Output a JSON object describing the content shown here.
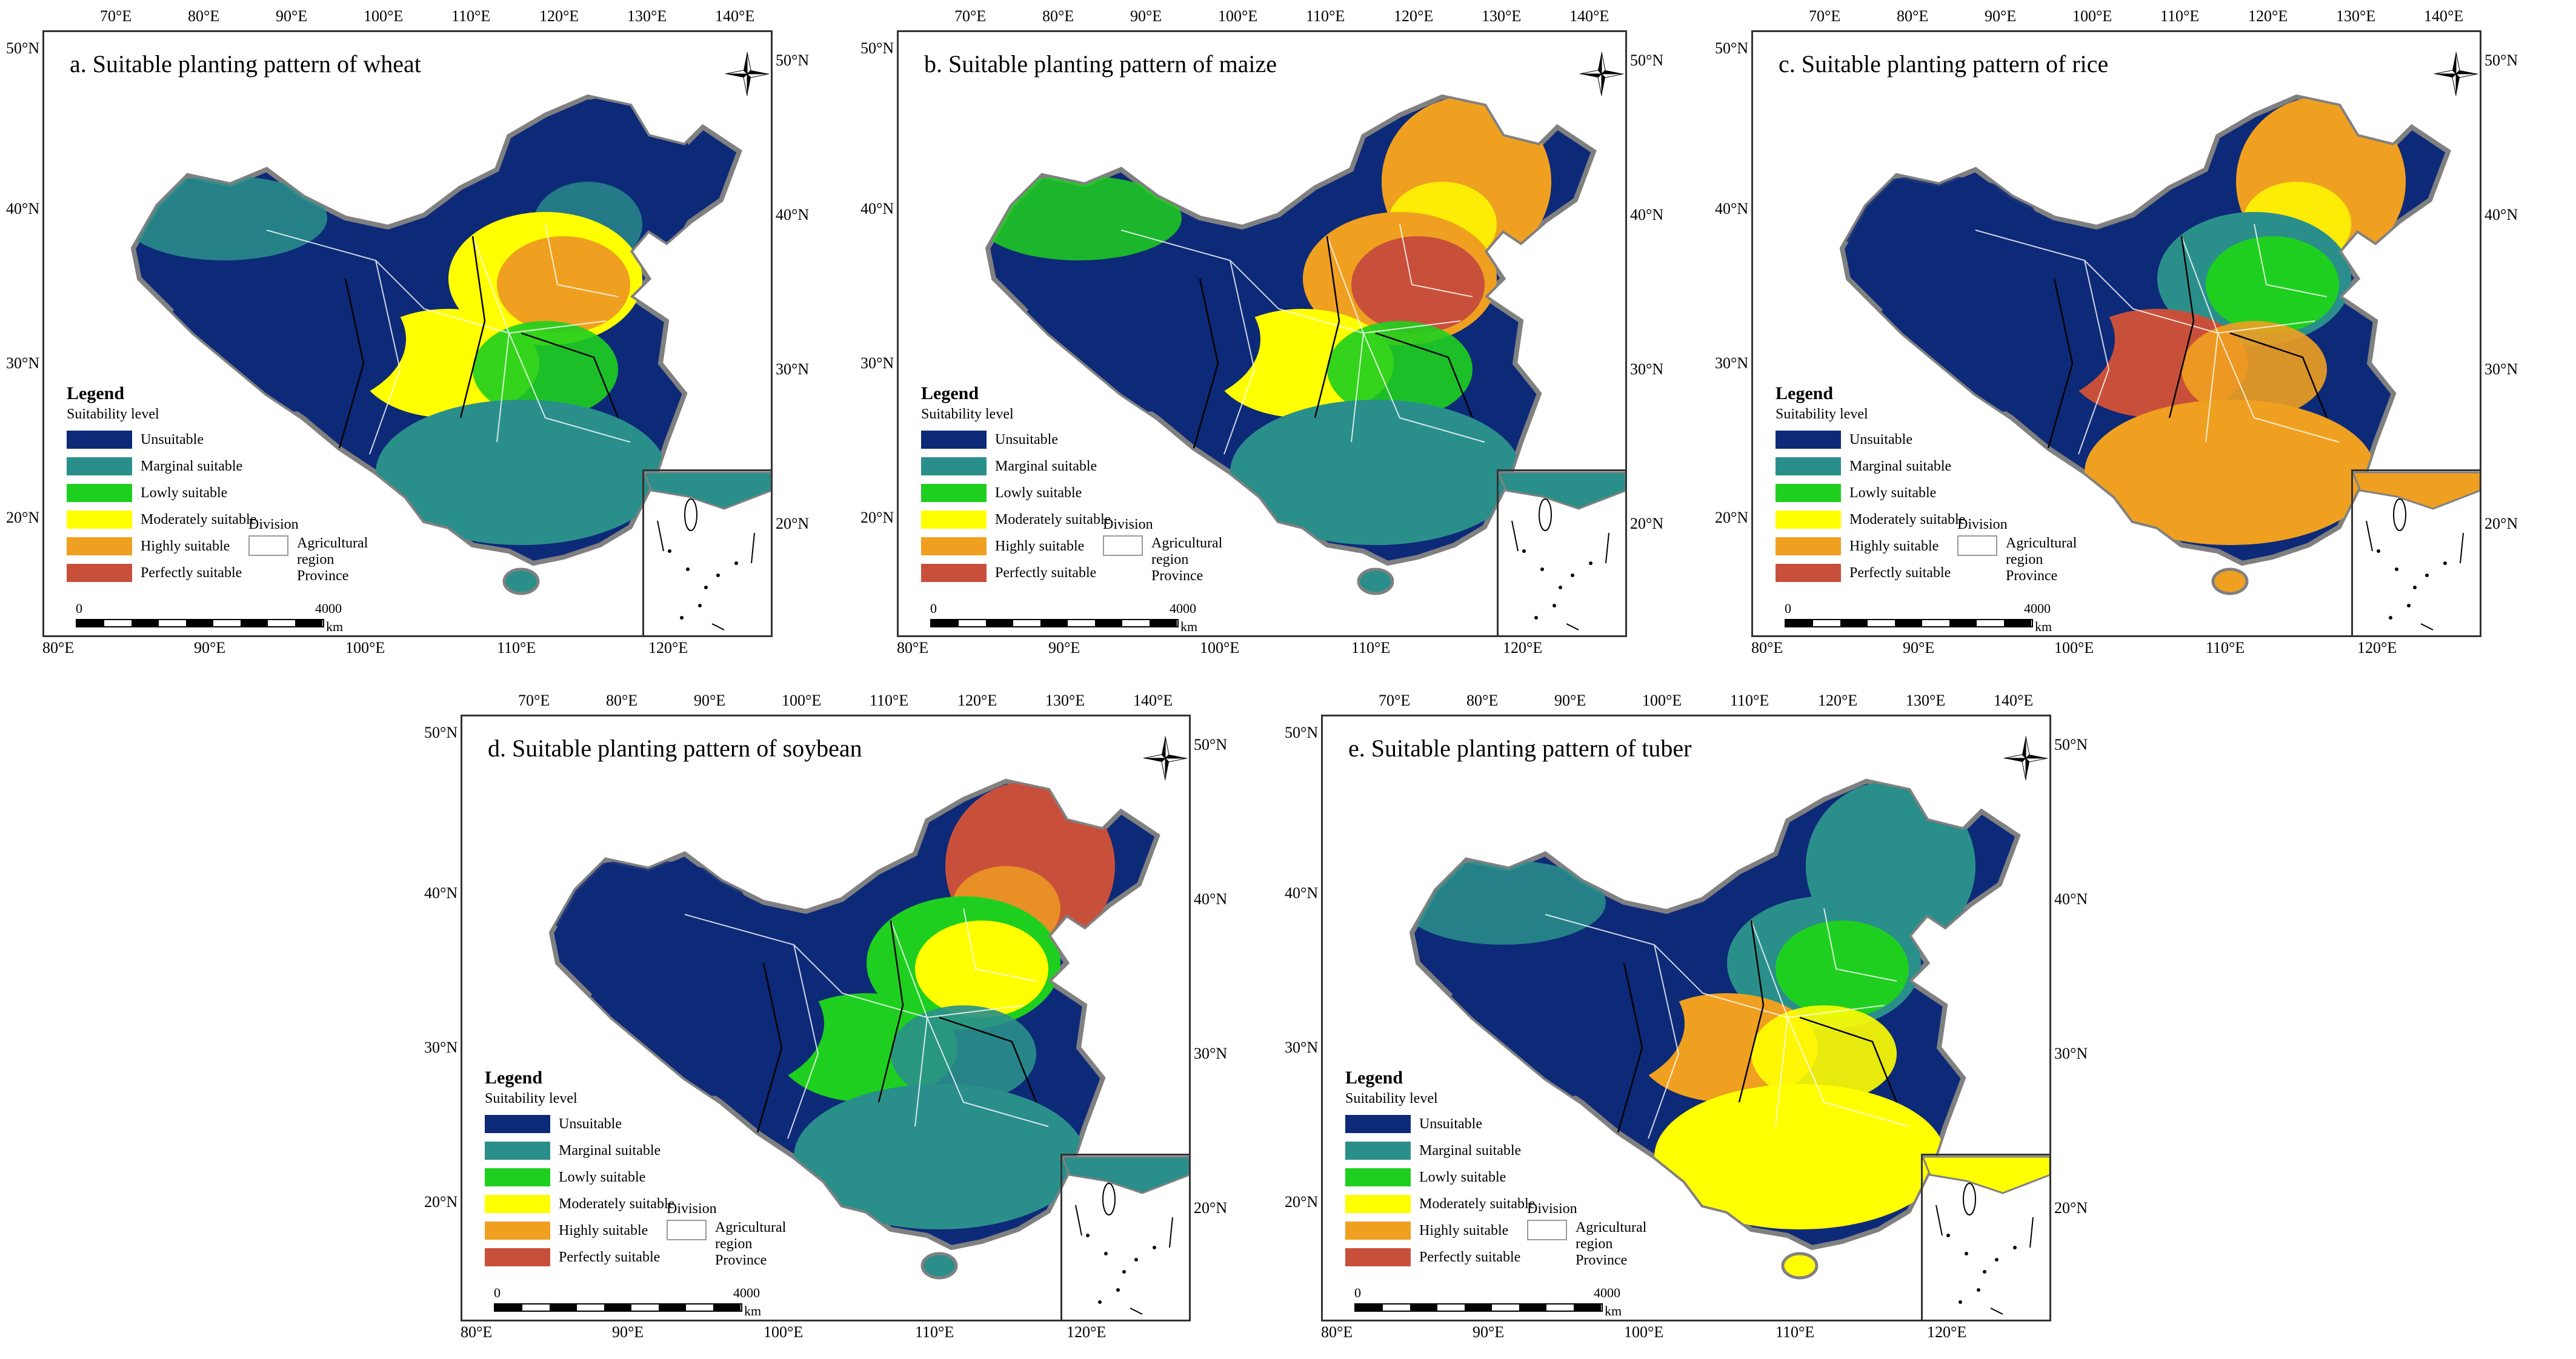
{
  "panels": [
    {
      "id": "a",
      "title": "a. Suitable planting pattern of wheat",
      "crop": "wheat"
    },
    {
      "id": "b",
      "title": "b. Suitable planting pattern of maize",
      "crop": "maize"
    },
    {
      "id": "c",
      "title": "c. Suitable planting pattern of rice",
      "crop": "rice"
    },
    {
      "id": "d",
      "title": "d. Suitable planting pattern of soybean",
      "crop": "soybean"
    },
    {
      "id": "e",
      "title": "e. Suitable planting pattern of tuber",
      "crop": "tuber"
    }
  ],
  "legend": {
    "heading": "Legend",
    "subheading": "Suitability level",
    "items": [
      {
        "label": "Unsuitable",
        "color": "#0d2a78"
      },
      {
        "label": "Marginal suitable",
        "color": "#2a8f8b"
      },
      {
        "label": "Lowly suitable",
        "color": "#1fcf1f"
      },
      {
        "label": "Moderately suitable",
        "color": "#ffff00"
      },
      {
        "label": "Highly suitable",
        "color": "#f0a020"
      },
      {
        "label": "Perfectly suitable",
        "color": "#c8503a"
      }
    ]
  },
  "division": {
    "heading": "Division",
    "label_line1": "Agricultural",
    "label_line2": "region",
    "label_line3": "Province"
  },
  "scale": {
    "zero": "0",
    "max": "4000",
    "unit": "km"
  },
  "axes": {
    "top_ticks": [
      "70°E",
      "80°E",
      "90°E",
      "100°E",
      "110°E",
      "120°E",
      "130°E",
      "140°E"
    ],
    "bottom_ticks": [
      "80°E",
      "90°E",
      "100°E",
      "110°E",
      "120°E"
    ],
    "left_ticks": [
      "50°N",
      "40°N",
      "30°N",
      "20°N"
    ],
    "right_ticks": [
      "50°N",
      "40°N",
      "30°N",
      "20°N"
    ]
  }
}
